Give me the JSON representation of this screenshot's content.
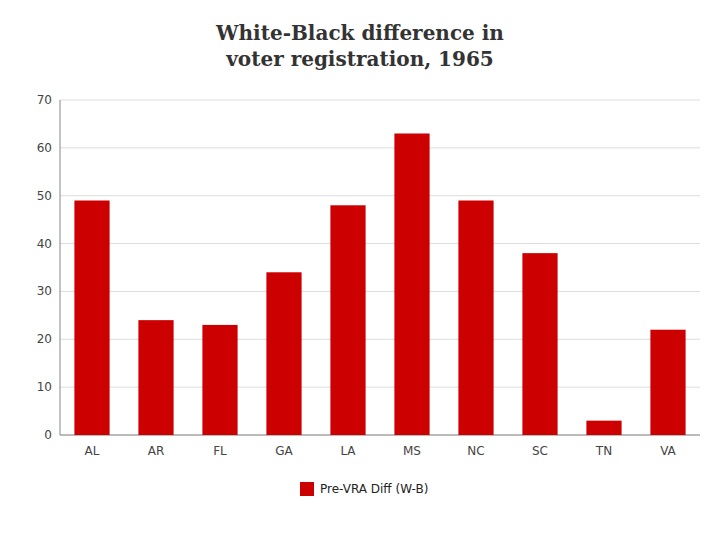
{
  "chart_data": {
    "type": "bar",
    "title": "White-Black difference in\nvoter registration, 1965",
    "categories": [
      "AL",
      "AR",
      "FL",
      "GA",
      "LA",
      "MS",
      "NC",
      "SC",
      "TN",
      "VA"
    ],
    "series": [
      {
        "name": "Pre-VRA Diff (W-B)",
        "color": "#CC0000",
        "values": [
          49,
          24,
          23,
          34,
          48,
          63,
          49,
          38,
          3,
          22
        ]
      }
    ],
    "ylim": [
      0,
      70
    ],
    "yticks": [
      0,
      10,
      20,
      30,
      40,
      50,
      60,
      70
    ],
    "grid": true,
    "legend": "bottom"
  }
}
